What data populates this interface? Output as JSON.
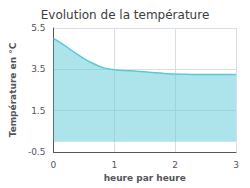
{
  "chart_data": {
    "type": "area",
    "title": "Evolution de la température",
    "xlabel": "heure par heure",
    "ylabel": "Température en °C",
    "x": [
      0,
      0.08,
      0.17,
      0.25,
      0.33,
      0.42,
      0.5,
      0.58,
      0.67,
      0.75,
      0.83,
      0.92,
      1.0,
      1.08,
      1.17,
      1.25,
      1.33,
      1.42,
      1.5,
      1.58,
      1.67,
      1.75,
      1.83,
      1.92,
      2.0,
      2.08,
      2.17,
      2.25,
      2.33,
      2.42,
      2.5,
      2.58,
      2.67,
      2.75,
      2.83,
      2.92,
      3.0
    ],
    "values": [
      5.0,
      4.85,
      4.68,
      4.52,
      4.35,
      4.18,
      4.02,
      3.88,
      3.76,
      3.65,
      3.57,
      3.52,
      3.48,
      3.46,
      3.44,
      3.43,
      3.42,
      3.4,
      3.38,
      3.36,
      3.34,
      3.32,
      3.3,
      3.28,
      3.27,
      3.26,
      3.26,
      3.25,
      3.25,
      3.25,
      3.25,
      3.25,
      3.25,
      3.25,
      3.25,
      3.25,
      3.25
    ],
    "color": "#5bc8d8",
    "xlim": [
      0,
      3
    ],
    "xticks": [
      0,
      1,
      2,
      3
    ],
    "ylim": [
      -0.5,
      5.5
    ],
    "yticks": [
      -0.5,
      1.5,
      3.5,
      5.5
    ],
    "grid": true
  }
}
